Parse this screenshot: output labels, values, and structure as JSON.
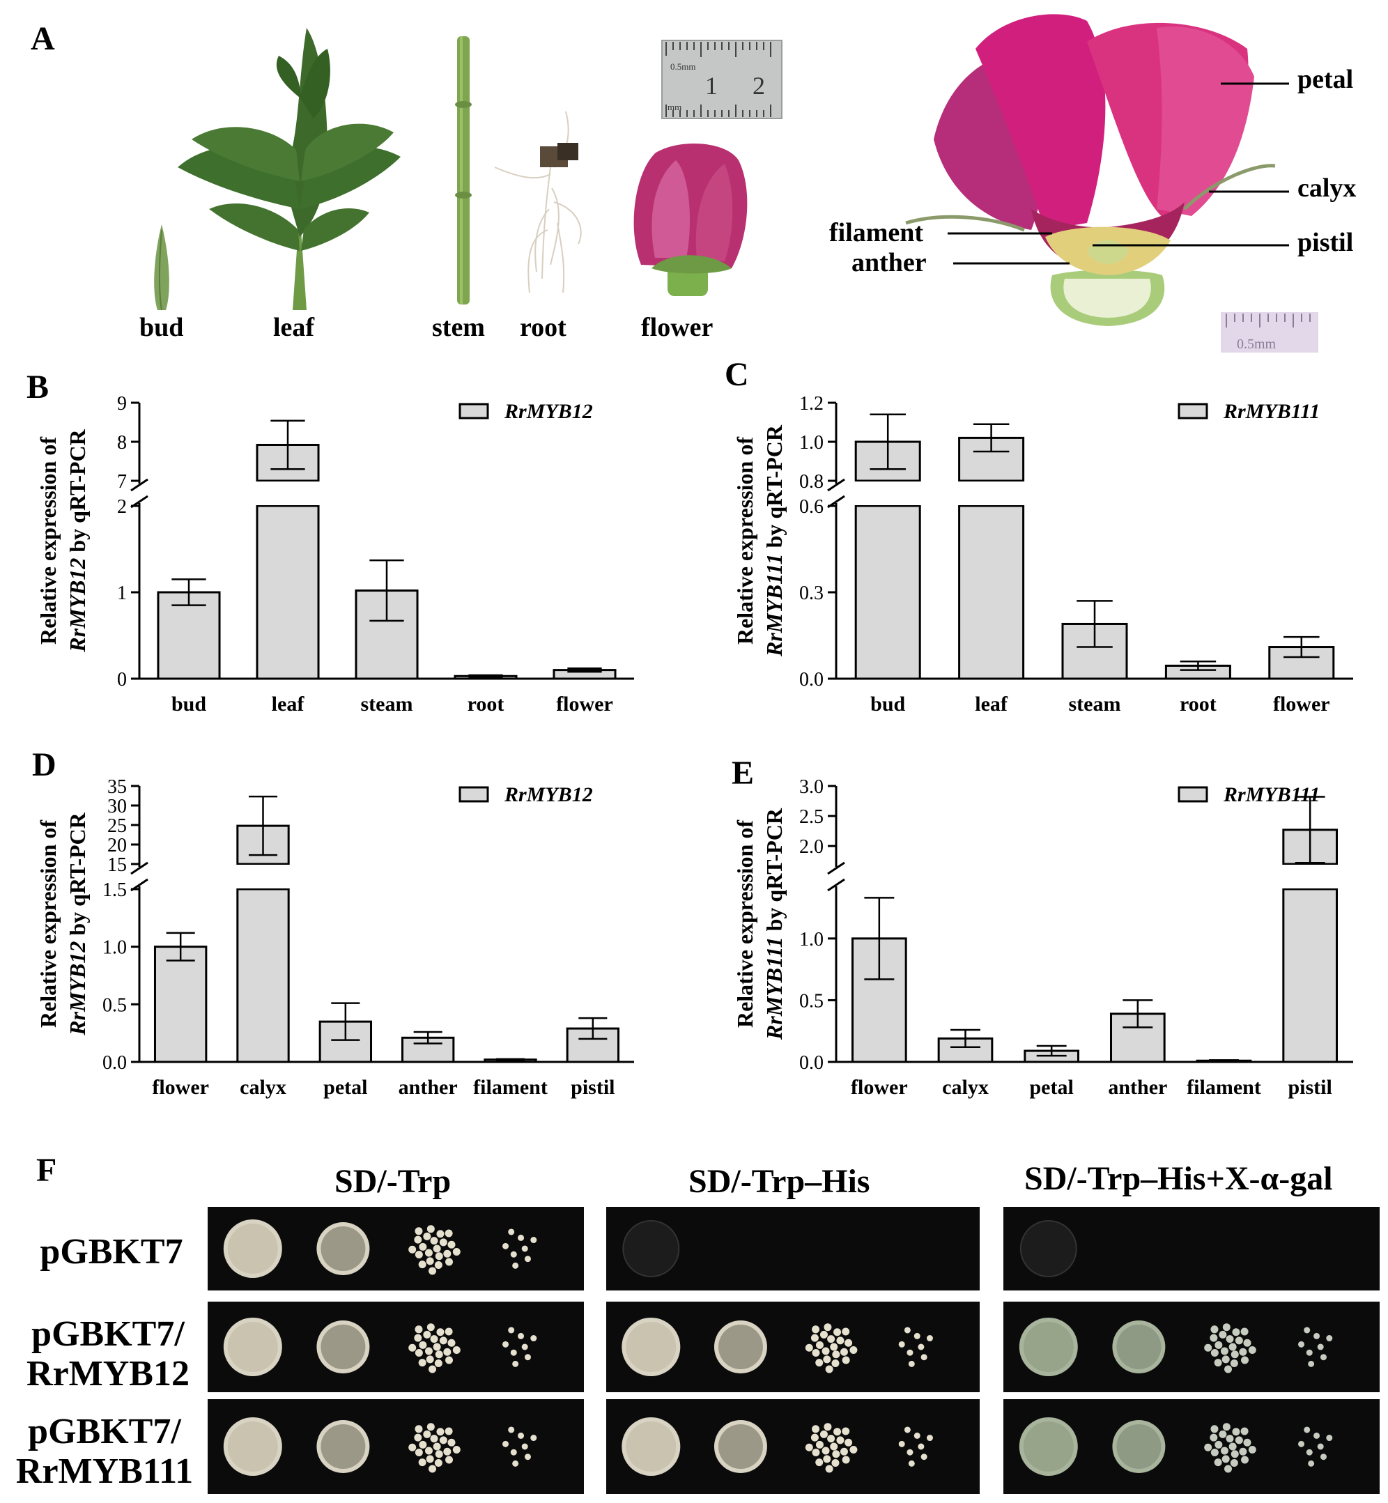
{
  "panels": {
    "a": "A",
    "b": "B",
    "c": "C",
    "d": "D",
    "e": "E",
    "f": "F"
  },
  "panel_a": {
    "organs": [
      "bud",
      "leaf",
      "stem",
      "root",
      "flower"
    ],
    "ruler_left": {
      "scale": "0.5mm",
      "unit": "mm",
      "n1": "1",
      "n2": "2"
    },
    "flower_parts": [
      "petal",
      "calyx",
      "filament",
      "pistil",
      "anther"
    ],
    "ruler_right": "0.5mm"
  },
  "chart_data": [
    {
      "panel": "B",
      "type": "bar",
      "categories": [
        "bud",
        "leaf",
        "steam",
        "root",
        "flower"
      ],
      "series": [
        {
          "name": "RrMYB12",
          "values": [
            1.0,
            7.92,
            1.02,
            0.03,
            0.1
          ],
          "errors": [
            0.15,
            0.62,
            0.35,
            0.01,
            0.02
          ]
        }
      ],
      "ylabel_line1": "Relative expression of",
      "ylabel_line2_italic": "RrMYB12",
      "ylabel_line2_rest": " by qRT-PCR",
      "broken_axis": true,
      "ylim_lower": [
        0,
        2
      ],
      "ylim_upper": [
        7,
        9
      ],
      "yticks_lower": [
        "0",
        "1",
        "2"
      ],
      "yticks_upper": [
        "7",
        "8",
        "9"
      ],
      "bar_color": "#d9d9d9"
    },
    {
      "panel": "C",
      "type": "bar",
      "categories": [
        "bud",
        "leaf",
        "steam",
        "root",
        "flower"
      ],
      "series": [
        {
          "name": "RrMYB111",
          "values": [
            1.0,
            1.02,
            0.19,
            0.045,
            0.11
          ],
          "errors": [
            0.14,
            0.07,
            0.08,
            0.015,
            0.035
          ]
        }
      ],
      "ylabel_line1": "Relative expression of",
      "ylabel_line2_italic": "RrMYB111",
      "ylabel_line2_rest": " by qRT-PCR",
      "broken_axis": true,
      "ylim_lower": [
        0,
        0.6
      ],
      "ylim_upper": [
        0.8,
        1.2
      ],
      "yticks_lower": [
        "0.0",
        "0.3",
        "0.6"
      ],
      "yticks_upper": [
        "0.8",
        "1.0",
        "1.2"
      ],
      "bar_color": "#d9d9d9"
    },
    {
      "panel": "D",
      "type": "bar",
      "categories": [
        "flower",
        "calyx",
        "petal",
        "anther",
        "filament",
        "pistil"
      ],
      "series": [
        {
          "name": "RrMYB12",
          "values": [
            1.0,
            24.8,
            0.35,
            0.21,
            0.02,
            0.29
          ],
          "errors": [
            0.12,
            7.5,
            0.16,
            0.05,
            0.005,
            0.09
          ]
        }
      ],
      "ylabel_line1": "Relative expression of",
      "ylabel_line2_italic": "RrMYB12",
      "ylabel_line2_rest": " by qRT-PCR",
      "broken_axis": true,
      "ylim_lower": [
        0,
        1.5
      ],
      "ylim_upper": [
        15,
        35
      ],
      "yticks_lower": [
        "0.0",
        "0.5",
        "1.0",
        "1.5"
      ],
      "yticks_upper": [
        "15",
        "20",
        "25",
        "30",
        "35"
      ],
      "bar_color": "#d9d9d9"
    },
    {
      "panel": "E",
      "type": "bar",
      "categories": [
        "flower",
        "calyx",
        "petal",
        "anther",
        "filament",
        "pistil"
      ],
      "series": [
        {
          "name": "RrMYB111",
          "values": [
            1.0,
            0.19,
            0.09,
            0.39,
            0.01,
            2.27
          ],
          "errors": [
            0.33,
            0.07,
            0.04,
            0.11,
            0.005,
            0.55
          ]
        }
      ],
      "ylabel_line1": "Relative expression of",
      "ylabel_line2_italic": "RrMYB111",
      "ylabel_line2_rest": " by qRT-PCR",
      "broken_axis": true,
      "ylim_lower": [
        0,
        1.4
      ],
      "ylim_upper": [
        1.7,
        3.0
      ],
      "yticks_lower": [
        "0.0",
        "0.5",
        "1.0"
      ],
      "yticks_upper": [
        "2.0",
        "2.5",
        "3.0"
      ],
      "bar_color": "#d9d9d9"
    }
  ],
  "panel_f": {
    "conditions": [
      "SD/-Trp",
      "SD/-Trp–His",
      "SD/-Trp–His+X-α-gal"
    ],
    "strains": [
      {
        "line1": "pGBKT7",
        "line2": ""
      },
      {
        "line1": "pGBKT7/",
        "line2": "RrMYB12"
      },
      {
        "line1": "pGBKT7/",
        "line2": "RrMYB111"
      }
    ],
    "growth": [
      [
        "full",
        "none",
        "none"
      ],
      [
        "full",
        "full",
        "full-blue"
      ],
      [
        "full",
        "full",
        "full-blue"
      ]
    ]
  }
}
